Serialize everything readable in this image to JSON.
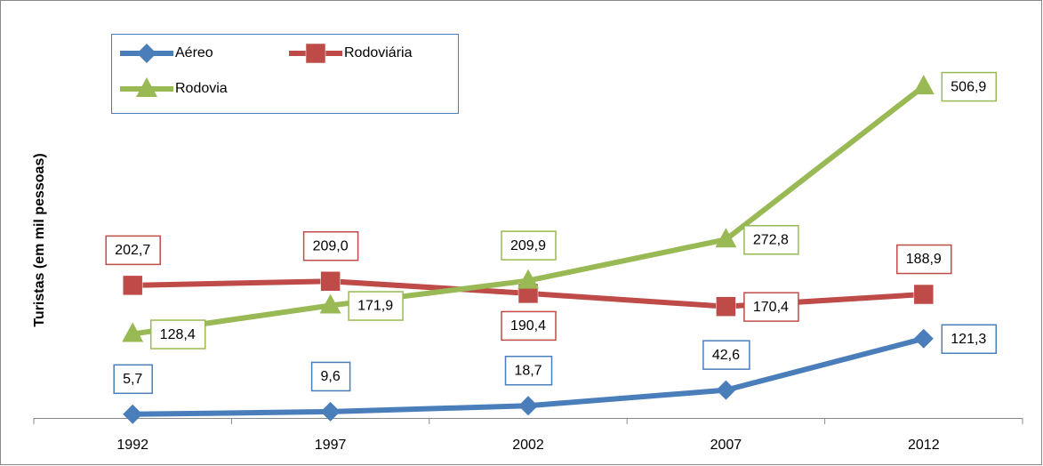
{
  "chart_data": {
    "type": "line",
    "y_axis_label": "Turistas (em mil pessoas)",
    "categories": [
      "1992",
      "1997",
      "2002",
      "2007",
      "2012"
    ],
    "ylim": [
      0,
      560
    ],
    "series": [
      {
        "name": "Aéreo",
        "color": "#4a7ebb",
        "marker": "diamond",
        "values": [
          5.7,
          9.6,
          18.7,
          42.6,
          121.3
        ],
        "value_labels": [
          "5,7",
          "9,6",
          "18,7",
          "42,6",
          "121,3"
        ]
      },
      {
        "name": "Rodoviária",
        "color": "#be4b48",
        "marker": "square",
        "values": [
          202.7,
          209.0,
          190.4,
          170.4,
          188.9
        ],
        "value_labels": [
          "202,7",
          "209,0",
          "190,4",
          "170,4",
          "188,9"
        ]
      },
      {
        "name": "Rodovia",
        "color": "#98b954",
        "marker": "triangle",
        "values": [
          128.4,
          171.9,
          209.9,
          272.8,
          506.9
        ],
        "value_labels": [
          "128,4",
          "171,9",
          "209,9",
          "272,8",
          "506,9"
        ]
      }
    ],
    "legend": "top-left"
  }
}
